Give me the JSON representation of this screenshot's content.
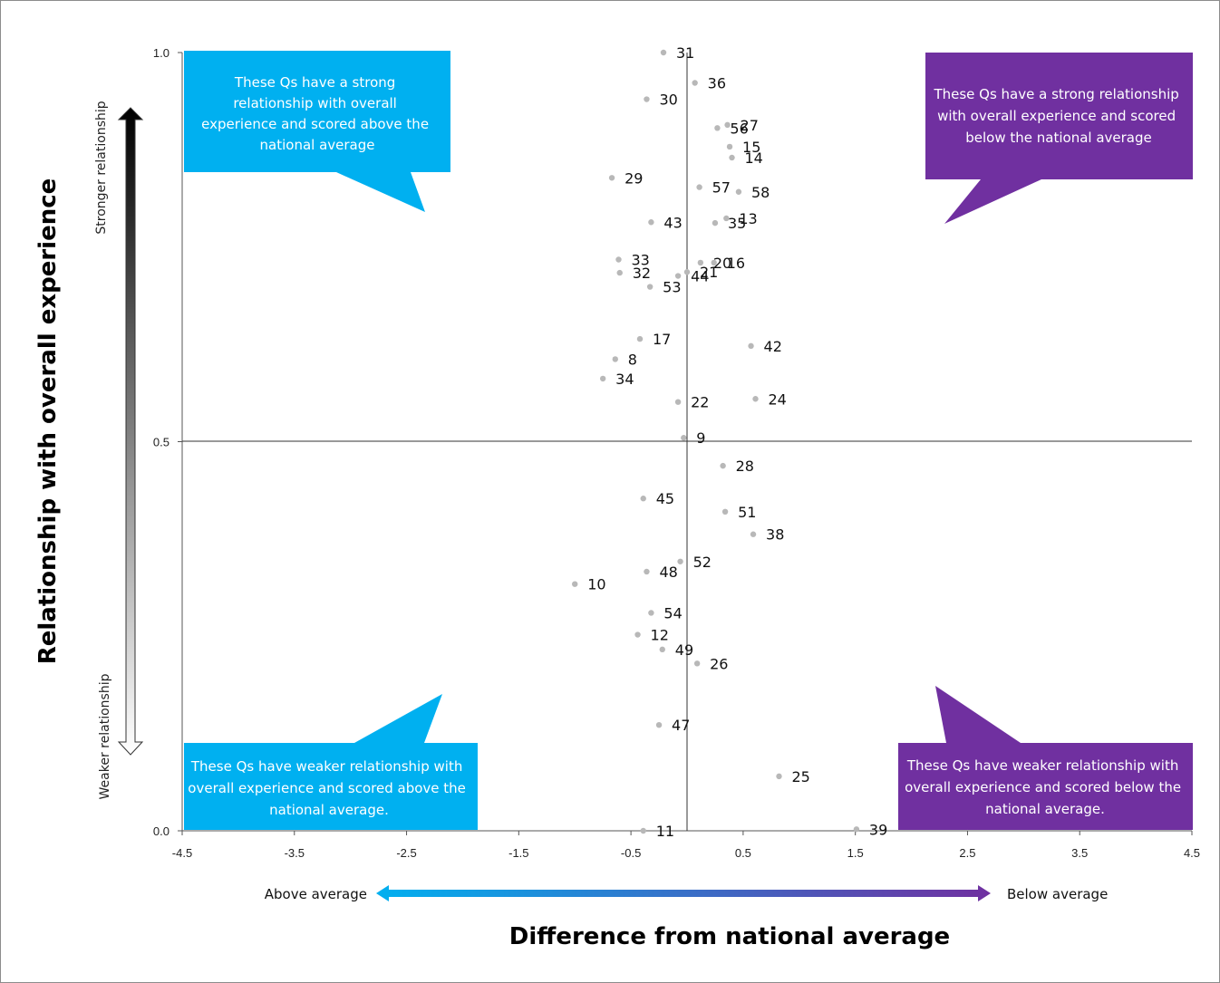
{
  "chart_data": {
    "type": "scatter",
    "xlabel": "Difference from national average",
    "ylabel": "Relationship with overall experience",
    "xlim": [
      -4.5,
      4.5
    ],
    "ylim": [
      0.0,
      1.0
    ],
    "x_ticks": [
      "-4.5",
      "-3.5",
      "-2.5",
      "-1.5",
      "-0.5",
      "0.5",
      "1.5",
      "2.5",
      "3.5",
      "4.5"
    ],
    "y_ticks": [
      "0.0",
      "0.5",
      "1.0"
    ],
    "x_tick_values": [
      -4.5,
      -3.5,
      -2.5,
      -1.5,
      -0.5,
      0.5,
      1.5,
      2.5,
      3.5,
      4.5
    ],
    "y_tick_values": [
      0.0,
      0.5,
      1.0
    ],
    "reference_lines": {
      "x": 0.0,
      "y": 0.5
    },
    "point_color": "#b8b8b8",
    "points": [
      {
        "label": "31",
        "x": -0.21,
        "y": 1.0
      },
      {
        "label": "36",
        "x": 0.07,
        "y": 0.961
      },
      {
        "label": "30",
        "x": -0.36,
        "y": 0.94
      },
      {
        "label": "27",
        "x": 0.36,
        "y": 0.907
      },
      {
        "label": "56",
        "x": 0.27,
        "y": 0.903
      },
      {
        "label": "15",
        "x": 0.38,
        "y": 0.879
      },
      {
        "label": "14",
        "x": 0.4,
        "y": 0.865
      },
      {
        "label": "29",
        "x": -0.67,
        "y": 0.839
      },
      {
        "label": "57",
        "x": 0.11,
        "y": 0.827
      },
      {
        "label": "58",
        "x": 0.46,
        "y": 0.821
      },
      {
        "label": "43",
        "x": -0.32,
        "y": 0.782
      },
      {
        "label": "13",
        "x": 0.35,
        "y": 0.787
      },
      {
        "label": "35",
        "x": 0.25,
        "y": 0.781
      },
      {
        "label": "33",
        "x": -0.61,
        "y": 0.734
      },
      {
        "label": "20",
        "x": 0.12,
        "y": 0.73
      },
      {
        "label": "16",
        "x": 0.24,
        "y": 0.73
      },
      {
        "label": "21",
        "x": 0.0,
        "y": 0.718
      },
      {
        "label": "32",
        "x": -0.6,
        "y": 0.717
      },
      {
        "label": "44",
        "x": -0.08,
        "y": 0.713
      },
      {
        "label": "53",
        "x": -0.33,
        "y": 0.699
      },
      {
        "label": "17",
        "x": -0.42,
        "y": 0.632
      },
      {
        "label": "42",
        "x": 0.57,
        "y": 0.623
      },
      {
        "label": "8",
        "x": -0.64,
        "y": 0.606
      },
      {
        "label": "34",
        "x": -0.75,
        "y": 0.581
      },
      {
        "label": "24",
        "x": 0.61,
        "y": 0.555
      },
      {
        "label": "22",
        "x": -0.08,
        "y": 0.551
      },
      {
        "label": "9",
        "x": -0.03,
        "y": 0.505
      },
      {
        "label": "28",
        "x": 0.32,
        "y": 0.469
      },
      {
        "label": "45",
        "x": -0.39,
        "y": 0.427
      },
      {
        "label": "51",
        "x": 0.34,
        "y": 0.41
      },
      {
        "label": "38",
        "x": 0.59,
        "y": 0.381
      },
      {
        "label": "48",
        "x": -0.36,
        "y": 0.333
      },
      {
        "label": "52",
        "x": -0.06,
        "y": 0.346
      },
      {
        "label": "10",
        "x": -1.0,
        "y": 0.317
      },
      {
        "label": "54",
        "x": -0.32,
        "y": 0.28
      },
      {
        "label": "12",
        "x": -0.44,
        "y": 0.252
      },
      {
        "label": "49",
        "x": -0.22,
        "y": 0.233
      },
      {
        "label": "26",
        "x": 0.09,
        "y": 0.215
      },
      {
        "label": "47",
        "x": -0.25,
        "y": 0.136
      },
      {
        "label": "25",
        "x": 0.82,
        "y": 0.07
      },
      {
        "label": "39",
        "x": 1.51,
        "y": 0.002
      },
      {
        "label": "11",
        "x": -0.39,
        "y": 0.0
      }
    ],
    "annotations": [
      "These Qs have a strong relationship with overall experience and scored above the national average",
      "These Qs have a strong relationship with overall experience and scored below the national average",
      "These Qs have weaker relationship with overall experience and scored above the national average.",
      "These Qs have weaker relationship with overall experience and scored below the national average."
    ]
  },
  "callouts": {
    "top_left": [
      "These Qs have a strong",
      "relationship with overall",
      "experience and scored above the",
      "national average"
    ],
    "top_right": [
      "These Qs have a strong relationship",
      "with overall experience and scored",
      "below the national average"
    ],
    "bottom_left": [
      "These Qs have weaker relationship with",
      "overall experience and scored above the",
      "national average."
    ],
    "bottom_right": [
      "These Qs have weaker relationship with",
      "overall experience and scored below the",
      "national average."
    ]
  },
  "colors": {
    "cyan": "#00b0f0",
    "purple": "#7030a0"
  },
  "y_arrow": {
    "top": "Stronger relationship",
    "bottom": "Weaker relationship"
  },
  "x_arrow": {
    "left": "Above average",
    "right": "Below average"
  }
}
